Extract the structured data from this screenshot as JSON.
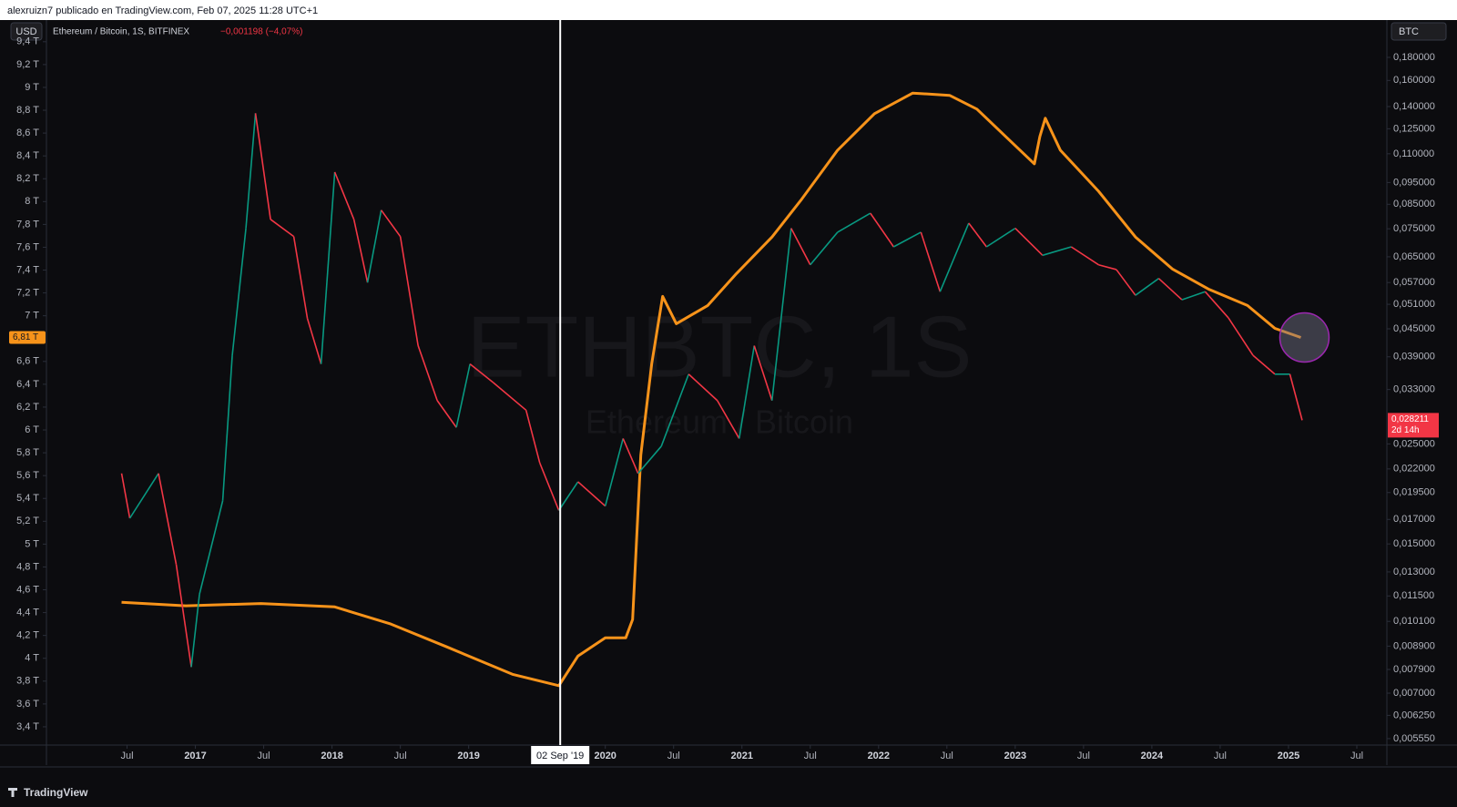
{
  "header": {
    "text": "alexruizn7 publicado en TradingView.com, Feb 07, 2025 11:28 UTC+1"
  },
  "footer": {
    "brand": "TradingView"
  },
  "chart_data": {
    "type": "line",
    "title": "Ethereum / Bitcoin, 1S, BITFINEX",
    "change": "−0,001198 (−4,07%)",
    "left_currency": "USD",
    "right_currency": "BTC",
    "watermark": "ETHBTC, 1S",
    "watermark_subtitle": "Ethereum / Bitcoin",
    "crosshair": {
      "value": 2019.67,
      "label": "02 Sep '19"
    },
    "xlim": [
      2015.91,
      2025.72
    ],
    "xticks": [
      {
        "value": 2016.5,
        "label": "Jul"
      },
      2017,
      {
        "value": 2017.5,
        "label": "Jul"
      },
      2018,
      {
        "value": 2018.5,
        "label": "Jul"
      },
      2019,
      2020,
      {
        "value": 2020.5,
        "label": "Jul"
      },
      2021,
      {
        "value": 2021.5,
        "label": "Jul"
      },
      2022,
      {
        "value": 2022.5,
        "label": "Jul"
      },
      2023,
      {
        "value": 2023.5,
        "label": "Jul"
      },
      2024,
      {
        "value": 2024.5,
        "label": "Jul"
      },
      2025,
      {
        "value": 2025.5,
        "label": "Jul"
      }
    ],
    "ylim": [
      3.24,
      9.59
    ],
    "yticks": [
      {
        "value": 3.4,
        "label": "3,4 T"
      },
      {
        "value": 3.6,
        "label": "3,6 T"
      },
      {
        "value": 3.8,
        "label": "3,8 T"
      },
      {
        "value": 4,
        "label": "4 T"
      },
      {
        "value": 4.2,
        "label": "4,2 T"
      },
      {
        "value": 4.4,
        "label": "4,4 T"
      },
      {
        "value": 4.6,
        "label": "4,6 T"
      },
      {
        "value": 4.8,
        "label": "4,8 T"
      },
      {
        "value": 5,
        "label": "5 T"
      },
      {
        "value": 5.2,
        "label": "5,2 T"
      },
      {
        "value": 5.4,
        "label": "5,4 T"
      },
      {
        "value": 5.6,
        "label": "5,6 T"
      },
      {
        "value": 5.8,
        "label": "5,8 T"
      },
      {
        "value": 6,
        "label": "6 T"
      },
      {
        "value": 6.2,
        "label": "6,2 T"
      },
      {
        "value": 6.4,
        "label": "6,4 T"
      },
      {
        "value": 6.6,
        "label": "6,6 T"
      },
      {
        "value": 7,
        "label": "7 T"
      },
      {
        "value": 7.2,
        "label": "7,2 T"
      },
      {
        "value": 7.4,
        "label": "7,4 T"
      },
      {
        "value": 7.6,
        "label": "7,6 T"
      },
      {
        "value": 7.8,
        "label": "7,8 T"
      },
      {
        "value": 8,
        "label": "8 T"
      },
      {
        "value": 8.2,
        "label": "8,2 T"
      },
      {
        "value": 8.4,
        "label": "8,4 T"
      },
      {
        "value": 8.6,
        "label": "8,6 T"
      },
      {
        "value": 8.8,
        "label": "8,8 T"
      },
      {
        "value": 9,
        "label": "9 T"
      },
      {
        "value": 9.2,
        "label": "9,2 T"
      },
      {
        "value": 9.4,
        "label": "9,4 T"
      }
    ],
    "y2lim": [
      0.00537,
      0.2178
    ],
    "y2log": true,
    "y2ticks": [
      {
        "value": 0.18,
        "label": "0,180000"
      },
      {
        "value": 0.16,
        "label": "0,160000"
      },
      {
        "value": 0.14,
        "label": "0,140000"
      },
      {
        "value": 0.125,
        "label": "0,125000"
      },
      {
        "value": 0.11,
        "label": "0,110000"
      },
      {
        "value": 0.095,
        "label": "0,095000"
      },
      {
        "value": 0.085,
        "label": "0,085000"
      },
      {
        "value": 0.075,
        "label": "0,075000"
      },
      {
        "value": 0.065,
        "label": "0,065000"
      },
      {
        "value": 0.057,
        "label": "0,057000"
      },
      {
        "value": 0.051,
        "label": "0,051000"
      },
      {
        "value": 0.045,
        "label": "0,045000"
      },
      {
        "value": 0.039,
        "label": "0,039000"
      },
      {
        "value": 0.033,
        "label": "0,033000"
      },
      {
        "value": 0.025,
        "label": "0,025000"
      },
      {
        "value": 0.022,
        "label": "0,022000"
      },
      {
        "value": 0.0195,
        "label": "0,019500"
      },
      {
        "value": 0.017,
        "label": "0,017000"
      },
      {
        "value": 0.015,
        "label": "0,015000"
      },
      {
        "value": 0.013,
        "label": "0,013000"
      },
      {
        "value": 0.0115,
        "label": "0,011500"
      },
      {
        "value": 0.0101,
        "label": "0,010100"
      },
      {
        "value": 0.0089,
        "label": "0,008900"
      },
      {
        "value": 0.0079,
        "label": "0,007900"
      },
      {
        "value": 0.007,
        "label": "0,007000"
      },
      {
        "value": 0.00625,
        "label": "0,006250"
      },
      {
        "value": 0.00555,
        "label": "0,005550"
      }
    ],
    "grid": false,
    "series": [
      {
        "color": "#f7931a",
        "axis": "y",
        "last_label": "6,81 T",
        "x": [
          2016.46,
          2016.93,
          2017.48,
          2018.02,
          2018.43,
          2018.84,
          2019.32,
          2019.66,
          2019.8,
          2020.0,
          2020.15,
          2020.2,
          2020.26,
          2020.34,
          2020.42,
          2020.52,
          2020.75,
          2020.96,
          2021.22,
          2021.43,
          2021.7,
          2021.97,
          2022.25,
          2022.52,
          2022.72,
          2022.93,
          2023.14,
          2023.18,
          2023.22,
          2023.33,
          2023.61,
          2023.88,
          2024.15,
          2024.42,
          2024.7,
          2024.9,
          2025.09
        ],
        "values": [
          4.49,
          4.46,
          4.48,
          4.45,
          4.3,
          4.1,
          3.86,
          3.76,
          4.02,
          4.18,
          4.18,
          4.34,
          5.78,
          6.58,
          7.17,
          6.93,
          7.09,
          7.37,
          7.69,
          8.01,
          8.45,
          8.77,
          8.95,
          8.93,
          8.81,
          8.57,
          8.33,
          8.57,
          8.73,
          8.45,
          8.09,
          7.69,
          7.41,
          7.23,
          7.09,
          6.89,
          6.81
        ]
      },
      {
        "name": "Ethereum / Bitcoin, 1S, BITFINEX",
        "up_color": "#089981",
        "down_color": "#f23645",
        "axis": "y2",
        "last_label": "0,028211",
        "countdown": "2d 14h",
        "x": [
          2016.46,
          2016.52,
          2016.73,
          2016.86,
          2016.97,
          2017.03,
          2017.2,
          2017.27,
          2017.37,
          2017.44,
          2017.55,
          2017.72,
          2017.82,
          2017.92,
          2018.02,
          2018.16,
          2018.26,
          2018.36,
          2018.5,
          2018.63,
          2018.77,
          2018.91,
          2019.01,
          2019.18,
          2019.42,
          2019.52,
          2019.66,
          2019.8,
          2020.0,
          2020.13,
          2020.24,
          2020.41,
          2020.61,
          2020.82,
          2020.98,
          2021.09,
          2021.22,
          2021.36,
          2021.5,
          2021.7,
          2021.94,
          2022.11,
          2022.31,
          2022.45,
          2022.66,
          2022.79,
          2023.0,
          2023.2,
          2023.41,
          2023.61,
          2023.74,
          2023.88,
          2024.05,
          2024.22,
          2024.39,
          2024.56,
          2024.74,
          2024.9,
          2025.01,
          2025.1
        ],
        "values": [
          0.0215,
          0.0171,
          0.0215,
          0.0135,
          0.008,
          0.0116,
          0.0187,
          0.0393,
          0.0752,
          0.1353,
          0.0787,
          0.0721,
          0.0474,
          0.0376,
          0.1002,
          0.0787,
          0.057,
          0.0825,
          0.0721,
          0.0413,
          0.0312,
          0.0272,
          0.0376,
          0.0342,
          0.0297,
          0.0227,
          0.0178,
          0.0206,
          0.0182,
          0.0257,
          0.0215,
          0.0247,
          0.0357,
          0.0312,
          0.0257,
          0.0413,
          0.0312,
          0.0752,
          0.0624,
          0.0737,
          0.0812,
          0.0684,
          0.0737,
          0.0544,
          0.0772,
          0.0684,
          0.0752,
          0.0655,
          0.0684,
          0.0624,
          0.0609,
          0.0534,
          0.0582,
          0.0522,
          0.0544,
          0.0476,
          0.0393,
          0.0357,
          0.0357,
          0.028211
        ]
      }
    ]
  }
}
